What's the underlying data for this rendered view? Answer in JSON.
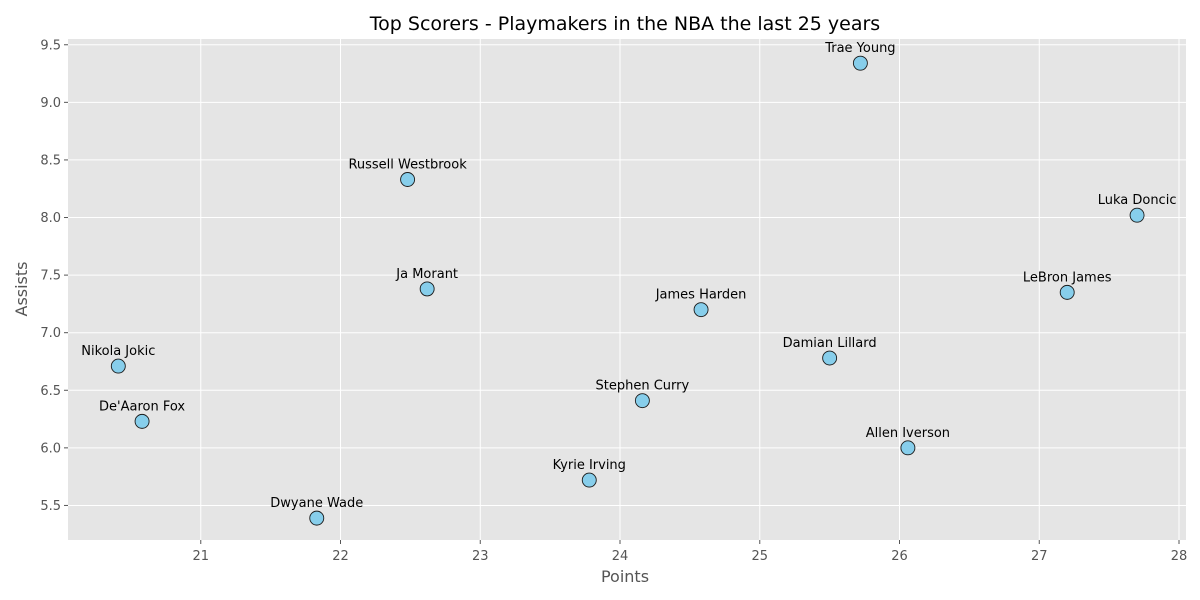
{
  "chart_data": {
    "type": "scatter",
    "title": "Top Scorers - Playmakers in the NBA the last 25 years",
    "xlabel": "Points",
    "ylabel": "Assists",
    "xlim": [
      20.05,
      28.05
    ],
    "ylim": [
      5.2,
      9.55
    ],
    "xticks": [
      21,
      22,
      23,
      24,
      25,
      26,
      27,
      28
    ],
    "yticks": [
      5.5,
      6.0,
      6.5,
      7.0,
      7.5,
      8.0,
      8.5,
      9.0,
      9.5
    ],
    "grid": true,
    "colors": {
      "background": "#e5e5e5",
      "grid": "#ffffff",
      "marker_fill": "#87ceeb",
      "marker_edge": "#1a1a1a"
    },
    "points": [
      {
        "name": "Trae Young",
        "x": 25.72,
        "y": 9.34
      },
      {
        "name": "Russell Westbrook",
        "x": 22.48,
        "y": 8.33
      },
      {
        "name": "Luka Doncic",
        "x": 27.7,
        "y": 8.02
      },
      {
        "name": "Ja Morant",
        "x": 22.62,
        "y": 7.38
      },
      {
        "name": "LeBron James",
        "x": 27.2,
        "y": 7.35
      },
      {
        "name": "James Harden",
        "x": 24.58,
        "y": 7.2
      },
      {
        "name": "Damian Lillard",
        "x": 25.5,
        "y": 6.78
      },
      {
        "name": "Nikola Jokic",
        "x": 20.41,
        "y": 6.71
      },
      {
        "name": "Stephen Curry",
        "x": 24.16,
        "y": 6.41
      },
      {
        "name": "De'Aaron Fox",
        "x": 20.58,
        "y": 6.23
      },
      {
        "name": "Allen Iverson",
        "x": 26.06,
        "y": 6.0
      },
      {
        "name": "Kyrie Irving",
        "x": 23.78,
        "y": 5.72
      },
      {
        "name": "Dwyane Wade",
        "x": 21.83,
        "y": 5.39
      }
    ]
  }
}
